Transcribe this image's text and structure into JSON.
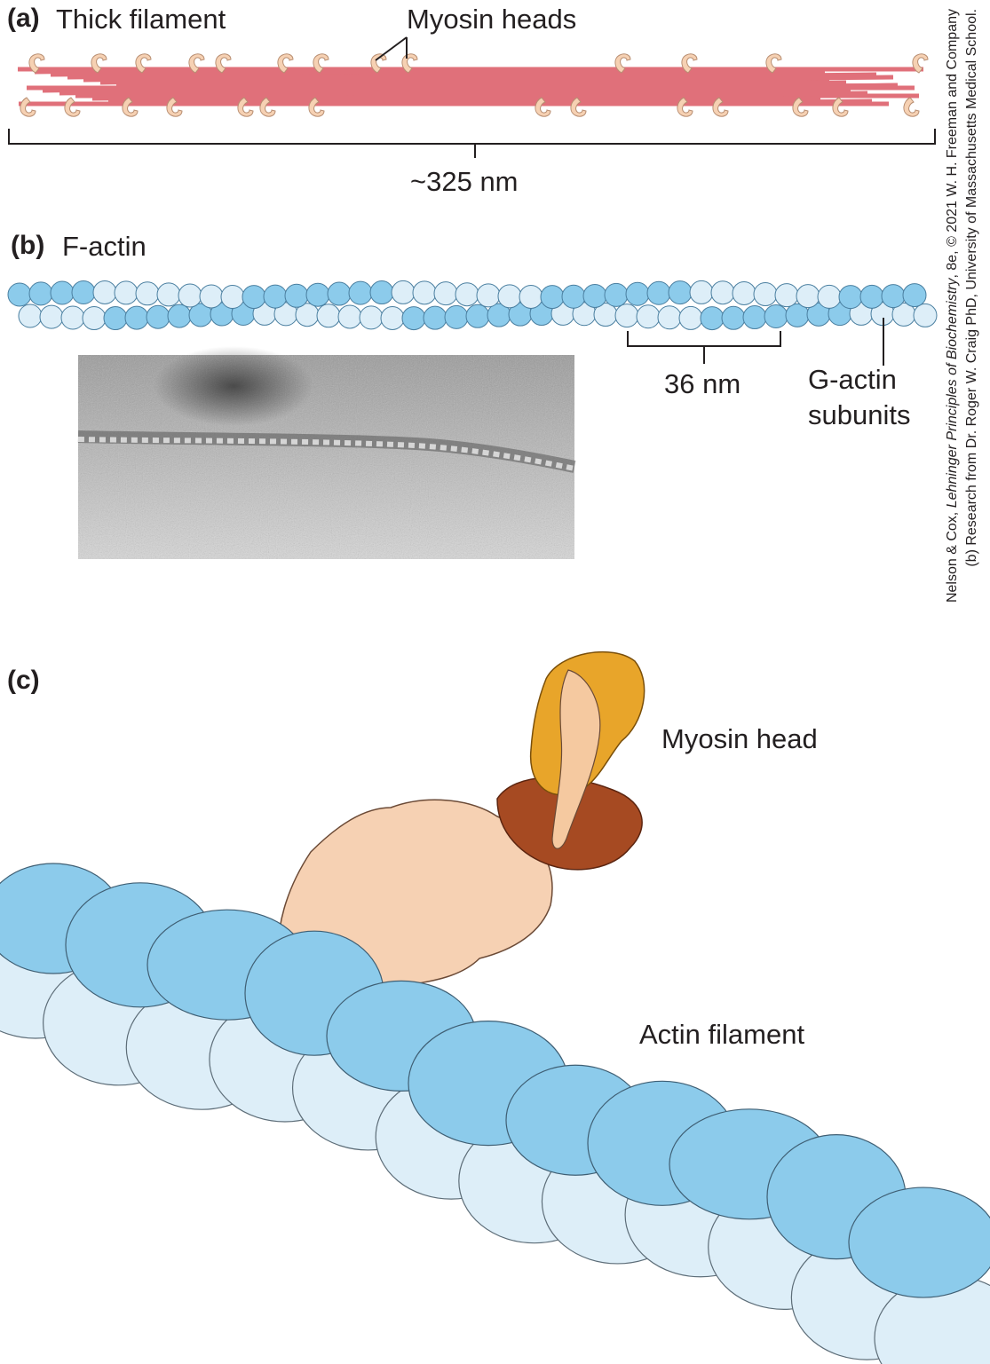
{
  "panel_a": {
    "letter": "(a)",
    "title": "Thick filament",
    "callout": "Myosin heads",
    "length_label": "~325 nm"
  },
  "panel_b": {
    "letter": "(b)",
    "title": "F-actin",
    "period_label": "36 nm",
    "subunit_label_line1": "G-actin",
    "subunit_label_line2": "subunits"
  },
  "panel_c": {
    "letter": "(c)",
    "myosin_label": "Myosin head",
    "actin_label": "Actin filament"
  },
  "credit": {
    "line1_prefix": "Nelson & Cox, ",
    "line1_italic": "Lehninger Principles of Biochemistry",
    "line1_suffix": ", 8e, © 2021 W. H. Freeman and Company",
    "line2": "(b) Research from Dr. Roger W. Craig PhD, University of Massachusetts Medical School."
  },
  "colors": {
    "filament_red": "#e0707a",
    "myosin_head_beige": "#f6d1b3",
    "actin_blue": "#8ccbeb",
    "actin_light": "#ddeef8",
    "myosin_orange": "#e8a52a",
    "myosin_brown": "#a64a22",
    "myosin_tan": "#f5c9a0"
  }
}
